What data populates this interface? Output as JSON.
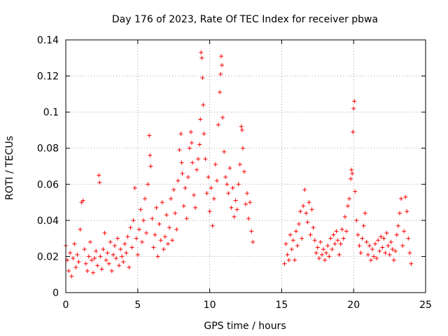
{
  "chart_data": {
    "type": "scatter",
    "title": "Day 176 of 2023, Rate Of TEC Index for receiver pbwa",
    "xlabel": "GPS time / hours",
    "ylabel": "ROTI / TECUs",
    "xlim": [
      0,
      25
    ],
    "ylim": [
      0,
      0.14
    ],
    "xticks": [
      0,
      5,
      10,
      15,
      20,
      25
    ],
    "xtick_labels": [
      "0",
      "5",
      "10",
      "15",
      "20",
      "25"
    ],
    "yticks": [
      0,
      0.02,
      0.04,
      0.06,
      0.08,
      0.1,
      0.12,
      0.14
    ],
    "ytick_labels": [
      "0",
      "0.02",
      "0.04",
      "0.06",
      "0.08",
      "0.1",
      "0.12",
      "0.14"
    ],
    "grid": true,
    "marker": "+",
    "color": "#ff0000",
    "data_gap_hours": [
      13.1,
      15.2
    ],
    "series": [
      {
        "values": [
          [
            0.0,
            0.026
          ],
          [
            0.1,
            0.018
          ],
          [
            0.2,
            0.012
          ],
          [
            0.3,
            0.022
          ],
          [
            0.4,
            0.009
          ],
          [
            0.5,
            0.019
          ],
          [
            0.6,
            0.027
          ],
          [
            0.7,
            0.014
          ],
          [
            0.8,
            0.021
          ],
          [
            0.9,
            0.017
          ],
          [
            1.0,
            0.035
          ],
          [
            1.1,
            0.05
          ],
          [
            1.2,
            0.051
          ],
          [
            1.3,
            0.024
          ],
          [
            1.4,
            0.016
          ],
          [
            1.5,
            0.012
          ],
          [
            1.6,
            0.02
          ],
          [
            1.7,
            0.028
          ],
          [
            1.8,
            0.018
          ],
          [
            1.9,
            0.011
          ],
          [
            2.0,
            0.019
          ],
          [
            2.1,
            0.023
          ],
          [
            2.2,
            0.015
          ],
          [
            2.3,
            0.065
          ],
          [
            2.35,
            0.061
          ],
          [
            2.4,
            0.02
          ],
          [
            2.5,
            0.013
          ],
          [
            2.6,
            0.024
          ],
          [
            2.7,
            0.033
          ],
          [
            2.8,
            0.018
          ],
          [
            2.9,
            0.022
          ],
          [
            3.0,
            0.016
          ],
          [
            3.1,
            0.028
          ],
          [
            3.2,
            0.012
          ],
          [
            3.3,
            0.021
          ],
          [
            3.4,
            0.026
          ],
          [
            3.5,
            0.019
          ],
          [
            3.6,
            0.03
          ],
          [
            3.7,
            0.015
          ],
          [
            3.8,
            0.024
          ],
          [
            3.9,
            0.02
          ],
          [
            4.0,
            0.017
          ],
          [
            4.1,
            0.027
          ],
          [
            4.2,
            0.022
          ],
          [
            4.3,
            0.031
          ],
          [
            4.4,
            0.014
          ],
          [
            4.5,
            0.036
          ],
          [
            4.6,
            0.025
          ],
          [
            4.7,
            0.04
          ],
          [
            4.8,
            0.058
          ],
          [
            4.9,
            0.03
          ],
          [
            5.0,
            0.021
          ],
          [
            5.1,
            0.035
          ],
          [
            5.2,
            0.046
          ],
          [
            5.3,
            0.028
          ],
          [
            5.4,
            0.04
          ],
          [
            5.5,
            0.052
          ],
          [
            5.6,
            0.033
          ],
          [
            5.7,
            0.06
          ],
          [
            5.8,
            0.087
          ],
          [
            5.85,
            0.076
          ],
          [
            5.9,
            0.07
          ],
          [
            6.0,
            0.041
          ],
          [
            6.1,
            0.025
          ],
          [
            6.2,
            0.032
          ],
          [
            6.3,
            0.047
          ],
          [
            6.4,
            0.02
          ],
          [
            6.5,
            0.038
          ],
          [
            6.6,
            0.029
          ],
          [
            6.7,
            0.05
          ],
          [
            6.8,
            0.024
          ],
          [
            6.9,
            0.031
          ],
          [
            7.0,
            0.043
          ],
          [
            7.1,
            0.027
          ],
          [
            7.2,
            0.036
          ],
          [
            7.3,
            0.052
          ],
          [
            7.4,
            0.029
          ],
          [
            7.5,
            0.057
          ],
          [
            7.6,
            0.044
          ],
          [
            7.7,
            0.035
          ],
          [
            7.8,
            0.062
          ],
          [
            7.9,
            0.079
          ],
          [
            8.0,
            0.088
          ],
          [
            8.05,
            0.072
          ],
          [
            8.1,
            0.066
          ],
          [
            8.2,
            0.048
          ],
          [
            8.3,
            0.058
          ],
          [
            8.4,
            0.041
          ],
          [
            8.5,
            0.064
          ],
          [
            8.6,
            0.08
          ],
          [
            8.7,
            0.089
          ],
          [
            8.75,
            0.083
          ],
          [
            8.8,
            0.072
          ],
          [
            8.9,
            0.054
          ],
          [
            9.0,
            0.047
          ],
          [
            9.1,
            0.068
          ],
          [
            9.2,
            0.074
          ],
          [
            9.3,
            0.082
          ],
          [
            9.35,
            0.096
          ],
          [
            9.4,
            0.133
          ],
          [
            9.45,
            0.13
          ],
          [
            9.5,
            0.119
          ],
          [
            9.55,
            0.104
          ],
          [
            9.6,
            0.088
          ],
          [
            9.7,
            0.074
          ],
          [
            9.8,
            0.055
          ],
          [
            9.9,
            0.064
          ],
          [
            10.0,
            0.045
          ],
          [
            10.1,
            0.058
          ],
          [
            10.2,
            0.037
          ],
          [
            10.3,
            0.052
          ],
          [
            10.4,
            0.071
          ],
          [
            10.5,
            0.062
          ],
          [
            10.6,
            0.093
          ],
          [
            10.7,
            0.111
          ],
          [
            10.75,
            0.121
          ],
          [
            10.8,
            0.131
          ],
          [
            10.85,
            0.126
          ],
          [
            10.9,
            0.097
          ],
          [
            11.0,
            0.078
          ],
          [
            11.1,
            0.064
          ],
          [
            11.2,
            0.06
          ],
          [
            11.3,
            0.055
          ],
          [
            11.4,
            0.069
          ],
          [
            11.5,
            0.047
          ],
          [
            11.6,
            0.058
          ],
          [
            11.7,
            0.042
          ],
          [
            11.8,
            0.051
          ],
          [
            11.9,
            0.046
          ],
          [
            12.0,
            0.06
          ],
          [
            12.1,
            0.071
          ],
          [
            12.2,
            0.092
          ],
          [
            12.25,
            0.09
          ],
          [
            12.3,
            0.08
          ],
          [
            12.4,
            0.067
          ],
          [
            12.5,
            0.049
          ],
          [
            12.6,
            0.055
          ],
          [
            12.7,
            0.041
          ],
          [
            12.8,
            0.05
          ],
          [
            12.9,
            0.034
          ],
          [
            13.0,
            0.028
          ],
          [
            15.2,
            0.016
          ],
          [
            15.3,
            0.027
          ],
          [
            15.4,
            0.021
          ],
          [
            15.5,
            0.018
          ],
          [
            15.6,
            0.032
          ],
          [
            15.7,
            0.024
          ],
          [
            15.8,
            0.029
          ],
          [
            15.9,
            0.018
          ],
          [
            16.0,
            0.034
          ],
          [
            16.1,
            0.026
          ],
          [
            16.2,
            0.038
          ],
          [
            16.3,
            0.045
          ],
          [
            16.4,
            0.03
          ],
          [
            16.5,
            0.048
          ],
          [
            16.6,
            0.057
          ],
          [
            16.7,
            0.044
          ],
          [
            16.8,
            0.039
          ],
          [
            16.9,
            0.05
          ],
          [
            17.0,
            0.032
          ],
          [
            17.1,
            0.046
          ],
          [
            17.2,
            0.036
          ],
          [
            17.3,
            0.029
          ],
          [
            17.4,
            0.022
          ],
          [
            17.5,
            0.025
          ],
          [
            17.6,
            0.019
          ],
          [
            17.7,
            0.028
          ],
          [
            17.8,
            0.021
          ],
          [
            17.9,
            0.024
          ],
          [
            18.0,
            0.018
          ],
          [
            18.1,
            0.022
          ],
          [
            18.2,
            0.026
          ],
          [
            18.3,
            0.02
          ],
          [
            18.4,
            0.03
          ],
          [
            18.5,
            0.024
          ],
          [
            18.6,
            0.032
          ],
          [
            18.7,
            0.027
          ],
          [
            18.8,
            0.034
          ],
          [
            18.9,
            0.029
          ],
          [
            19.0,
            0.021
          ],
          [
            19.1,
            0.027
          ],
          [
            19.2,
            0.035
          ],
          [
            19.3,
            0.03
          ],
          [
            19.4,
            0.042
          ],
          [
            19.5,
            0.034
          ],
          [
            19.6,
            0.048
          ],
          [
            19.7,
            0.052
          ],
          [
            19.8,
            0.063
          ],
          [
            19.85,
            0.068
          ],
          [
            19.9,
            0.066
          ],
          [
            19.95,
            0.089
          ],
          [
            20.0,
            0.102
          ],
          [
            20.05,
            0.106
          ],
          [
            20.1,
            0.056
          ],
          [
            20.2,
            0.04
          ],
          [
            20.3,
            0.032
          ],
          [
            20.4,
            0.026
          ],
          [
            20.5,
            0.022
          ],
          [
            20.6,
            0.03
          ],
          [
            20.7,
            0.037
          ],
          [
            20.8,
            0.044
          ],
          [
            20.9,
            0.028
          ],
          [
            21.0,
            0.021
          ],
          [
            21.1,
            0.026
          ],
          [
            21.2,
            0.018
          ],
          [
            21.3,
            0.024
          ],
          [
            21.4,
            0.02
          ],
          [
            21.5,
            0.027
          ],
          [
            21.6,
            0.019
          ],
          [
            21.7,
            0.029
          ],
          [
            21.8,
            0.023
          ],
          [
            21.9,
            0.031
          ],
          [
            22.0,
            0.025
          ],
          [
            22.1,
            0.03
          ],
          [
            22.2,
            0.022
          ],
          [
            22.3,
            0.033
          ],
          [
            22.4,
            0.026
          ],
          [
            22.5,
            0.021
          ],
          [
            22.6,
            0.028
          ],
          [
            22.7,
            0.024
          ],
          [
            22.8,
            0.018
          ],
          [
            22.9,
            0.023
          ],
          [
            23.0,
            0.032
          ],
          [
            23.1,
            0.037
          ],
          [
            23.2,
            0.044
          ],
          [
            23.3,
            0.052
          ],
          [
            23.4,
            0.026
          ],
          [
            23.5,
            0.034
          ],
          [
            23.6,
            0.053
          ],
          [
            23.7,
            0.045
          ],
          [
            23.8,
            0.03
          ],
          [
            23.9,
            0.022
          ],
          [
            24.0,
            0.016
          ]
        ]
      }
    ]
  }
}
